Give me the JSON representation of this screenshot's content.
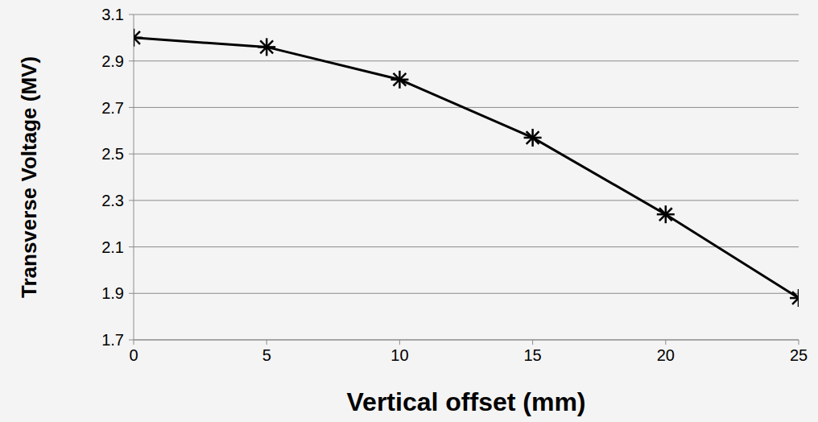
{
  "chart_data": {
    "type": "line",
    "x_label": "Vertical offset (mm)",
    "y_label": "Transverse Voltage (MV)",
    "x": [
      0,
      5,
      10,
      15,
      20,
      25
    ],
    "values": [
      3.0,
      2.96,
      2.82,
      2.57,
      2.24,
      1.88
    ],
    "color": "#000000",
    "marker": "asterisk",
    "line_style": "solid",
    "xlim": [
      0,
      25
    ],
    "xticks": [
      0,
      5,
      10,
      15,
      20,
      25
    ],
    "ylim": [
      1.7,
      3.1
    ],
    "yticks": [
      1.7,
      1.9,
      2.1,
      2.3,
      2.5,
      2.7,
      2.9,
      3.1
    ],
    "grid": true
  }
}
